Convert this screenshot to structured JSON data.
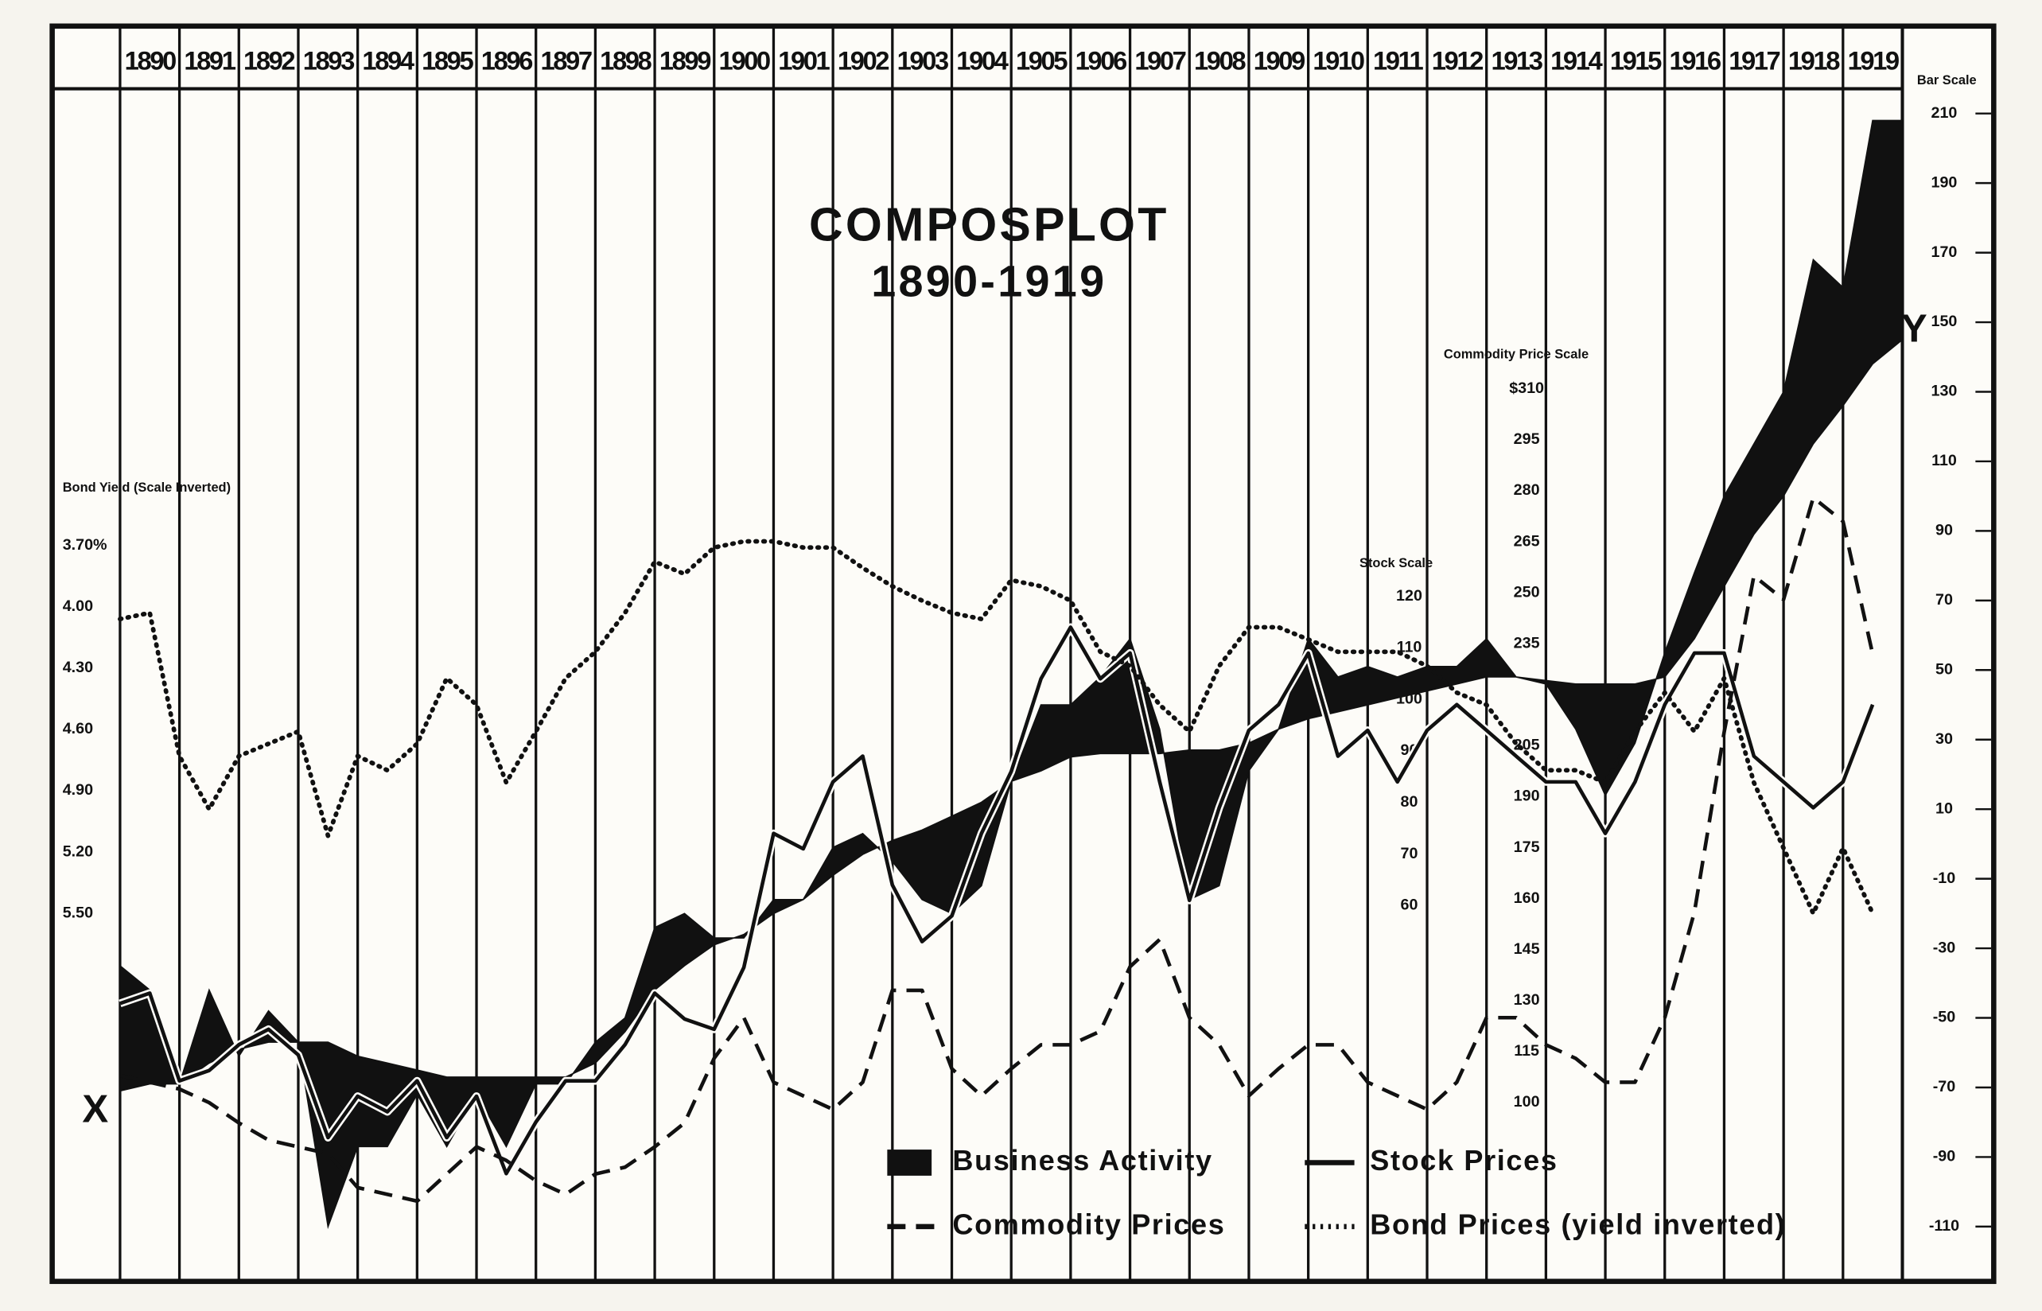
{
  "chart_data": {
    "type": "line",
    "title": "COMPOSPLOT",
    "subtitle": "1890-1919",
    "xlim": [
      1890,
      1920
    ],
    "xticks": [
      1890,
      1891,
      1892,
      1893,
      1894,
      1895,
      1896,
      1897,
      1898,
      1899,
      1900,
      1901,
      1902,
      1903,
      1904,
      1905,
      1906,
      1907,
      1908,
      1909,
      1910,
      1911,
      1912,
      1913,
      1914,
      1915,
      1916,
      1917,
      1918,
      1919
    ],
    "grid": true,
    "legend": "bottom",
    "annotations": [
      {
        "text": "X"
      },
      {
        "text": "Y"
      }
    ],
    "axes": [
      {
        "title": "Bar Scale",
        "ylim": [
          -110,
          210
        ],
        "yticks": [
          210,
          190,
          170,
          150,
          130,
          110,
          90,
          70,
          50,
          30,
          10,
          -10,
          -30,
          -50,
          -70,
          -90,
          -110
        ]
      },
      {
        "title": "Stock Scale",
        "ylim": [
          60,
          120
        ],
        "yticks": [
          120,
          110,
          100,
          90,
          80,
          70,
          60
        ]
      },
      {
        "title": "Commodity Price Scale",
        "ylim": [
          100,
          310
        ],
        "yticks": [
          {
            "value": 310,
            "label": "$310"
          },
          295,
          280,
          265,
          250,
          235,
          205,
          190,
          175,
          160,
          145,
          130,
          115,
          100
        ]
      },
      {
        "title": "Bond Yield (Scale Inverted)",
        "ylim": [
          3.7,
          5.5
        ],
        "inverted": true,
        "yticks": [
          {
            "value": 3.7,
            "label": "3.70%"
          },
          {
            "value": 4,
            "label": "4.00"
          },
          {
            "value": 4.3,
            "label": "4.30"
          },
          {
            "value": 4.6,
            "label": "4.60"
          },
          {
            "value": 4.9,
            "label": "4.90"
          },
          {
            "value": 5.2,
            "label": "5.20"
          },
          {
            "value": 5.5,
            "label": "5.50"
          }
        ]
      }
    ],
    "x": [
      1890,
      1890.5,
      1891,
      1891.5,
      1892,
      1892.5,
      1893,
      1893.5,
      1894,
      1894.5,
      1895,
      1895.5,
      1896,
      1896.5,
      1897,
      1897.5,
      1898,
      1898.5,
      1899,
      1899.5,
      1900,
      1900.5,
      1901,
      1901.5,
      1902,
      1902.5,
      1903,
      1903.5,
      1904,
      1904.5,
      1905,
      1905.5,
      1906,
      1906.5,
      1907,
      1907.5,
      1908,
      1908.5,
      1909,
      1909.5,
      1910,
      1910.5,
      1911,
      1911.5,
      1912,
      1912.5,
      1913,
      1913.5,
      1914,
      1914.5,
      1915,
      1915.5,
      1916,
      1916.5,
      1917,
      1917.5,
      1918,
      1918.5,
      1919,
      1919.5,
      1920
    ],
    "series": [
      {
        "name": "Business Activity",
        "style": "area",
        "axis": 0,
        "color": "#111111",
        "values": [
          -35,
          -42,
          -69,
          -42,
          -61,
          -48,
          -57,
          -110,
          -87,
          -87,
          -72,
          -87,
          -72,
          -87,
          -69,
          -69,
          -57,
          -50,
          -24,
          -20,
          -27,
          -27,
          -16,
          -16,
          -1,
          3,
          -5,
          -16,
          -20,
          -12,
          18,
          40,
          40,
          48,
          59,
          33,
          -16,
          -12,
          21,
          33,
          59,
          48,
          51,
          48,
          51,
          51,
          59,
          48,
          46,
          33,
          14,
          29,
          55,
          78,
          100,
          115,
          130,
          168,
          160,
          208,
          208
        ],
        "normal": [
          -71,
          -69,
          -69,
          -63,
          -59,
          -57,
          -57,
          -57,
          -61,
          -63,
          -65,
          -67,
          -67,
          -67,
          -67,
          -67,
          -63,
          -54,
          -42,
          -35,
          -29,
          -26,
          -20,
          -16,
          -9,
          -3,
          1,
          4,
          8,
          12,
          18,
          21,
          25,
          26,
          26,
          26,
          27,
          27,
          29,
          33,
          36,
          38,
          40,
          42,
          44,
          46,
          48,
          48,
          47,
          46,
          46,
          46,
          48,
          59,
          74,
          89,
          100,
          115,
          126,
          138,
          145
        ]
      },
      {
        "name": "Stock Prices",
        "style": "solid",
        "axis": 1,
        "color": "#111111",
        "values": [
          41,
          43,
          26,
          28,
          33,
          36,
          31,
          15,
          23,
          20,
          26,
          15,
          23,
          8,
          18,
          26,
          26,
          33,
          43,
          38,
          36,
          48,
          74,
          71,
          84,
          89,
          64,
          53,
          58,
          74,
          86,
          104,
          114,
          104,
          109,
          84,
          61,
          79,
          94,
          99,
          109,
          89,
          94,
          84,
          94,
          99,
          94,
          89,
          84,
          84,
          74,
          84,
          99,
          109,
          109,
          89,
          84,
          79,
          84,
          99,
          null
        ]
      },
      {
        "name": "Commodity Prices",
        "style": "dashed",
        "axis": 2,
        "color": "#111111",
        "values": [
          108,
          106,
          104,
          100,
          94,
          89,
          87,
          85,
          75,
          73,
          71,
          79,
          87,
          83,
          77,
          73,
          79,
          81,
          87,
          94,
          113,
          125,
          106,
          102,
          98,
          106,
          133,
          133,
          110,
          102,
          110,
          117,
          117,
          121,
          140,
          148,
          125,
          117,
          102,
          110,
          117,
          117,
          106,
          102,
          98,
          106,
          125,
          125,
          117,
          113,
          106,
          106,
          125,
          156,
          209,
          255,
          248,
          278,
          271,
          232,
          null
        ]
      },
      {
        "name": "Bond Prices (yield inverted)",
        "style": "dotted",
        "axis": 3,
        "color": "#111111",
        "values": [
          4.06,
          4.03,
          4.73,
          4.99,
          4.73,
          4.67,
          4.61,
          5.12,
          4.73,
          4.8,
          4.67,
          4.35,
          4.48,
          4.86,
          4.61,
          4.35,
          4.22,
          4.03,
          3.78,
          3.84,
          3.71,
          3.68,
          3.68,
          3.71,
          3.71,
          3.81,
          3.9,
          3.97,
          4.03,
          4.06,
          3.87,
          3.9,
          3.97,
          4.22,
          4.29,
          4.48,
          4.61,
          4.29,
          4.1,
          4.1,
          4.16,
          4.22,
          4.22,
          4.22,
          4.29,
          4.42,
          4.48,
          4.67,
          4.8,
          4.8,
          4.86,
          4.61,
          4.42,
          4.61,
          4.35,
          4.86,
          5.18,
          5.5,
          5.18,
          5.5,
          null
        ]
      }
    ]
  }
}
